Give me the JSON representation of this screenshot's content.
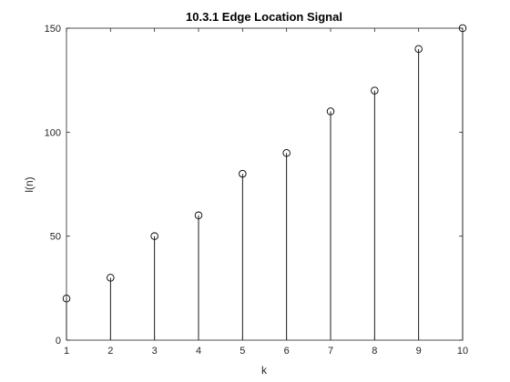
{
  "chart_data": {
    "type": "stem",
    "title": "10.3.1 Edge Location Signal",
    "xlabel": "k",
    "ylabel": "l(n)",
    "x": [
      1,
      2,
      3,
      4,
      5,
      6,
      7,
      8,
      9,
      10
    ],
    "values": [
      20,
      30,
      50,
      60,
      80,
      90,
      110,
      120,
      140,
      150
    ],
    "xlim": [
      1,
      10
    ],
    "ylim": [
      0,
      150
    ],
    "xticks": [
      "1",
      "2",
      "3",
      "4",
      "5",
      "6",
      "7",
      "8",
      "9",
      "10"
    ],
    "yticks": [
      "0",
      "50",
      "100",
      "150"
    ],
    "grid": false,
    "marker": "circle",
    "colors": {
      "stem": "#000000",
      "axis": "#262626",
      "background": "#ffffff"
    }
  }
}
